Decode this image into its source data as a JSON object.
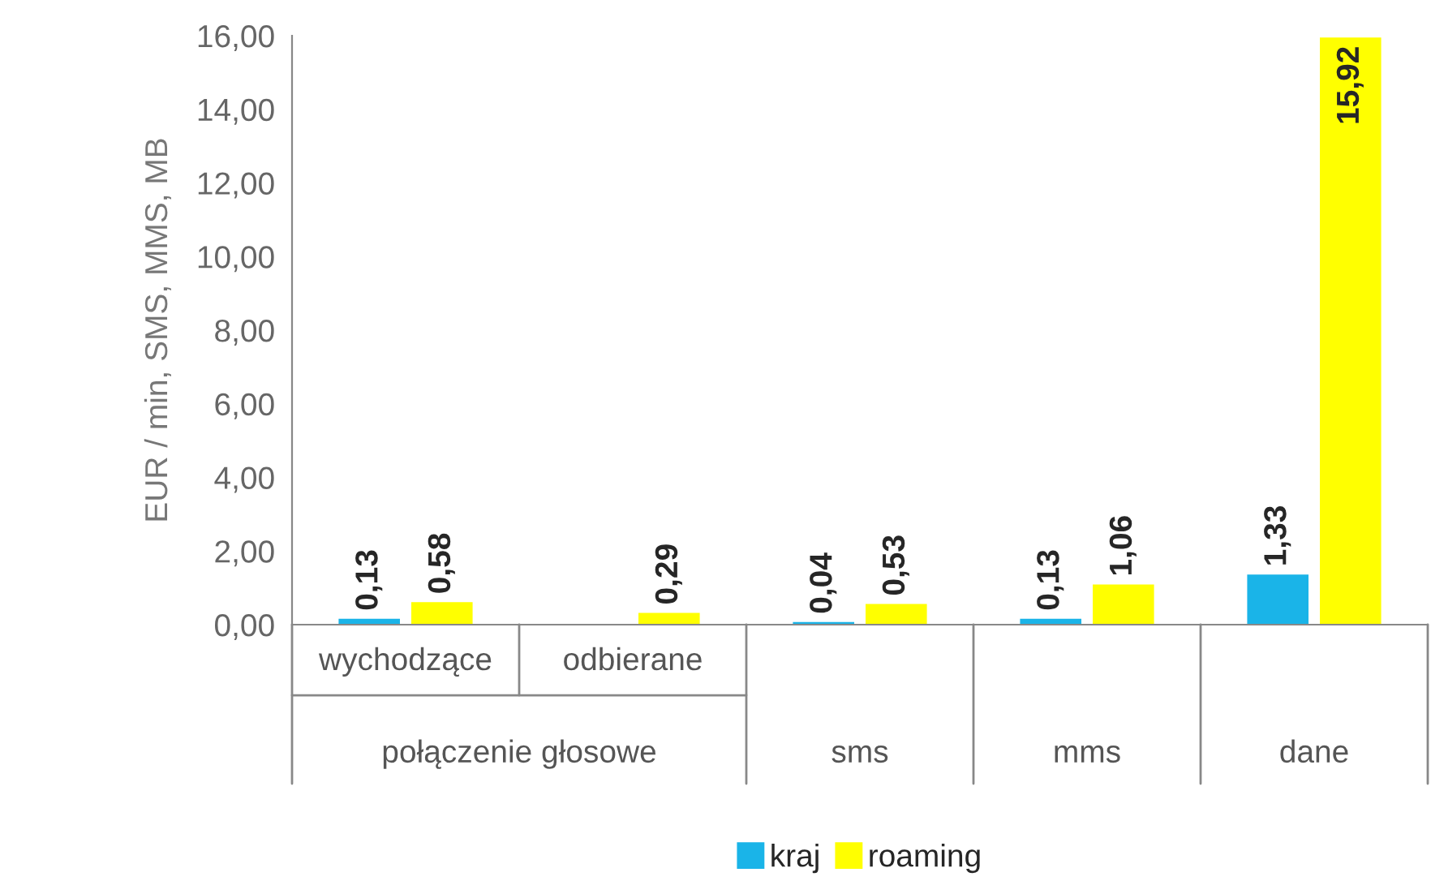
{
  "chart_data": {
    "type": "bar",
    "ylabel": "EUR / min, SMS, MMS, MB",
    "categories": [
      "wychodzące",
      "odbierane",
      "sms",
      "mms",
      "dane"
    ],
    "series": [
      {
        "name": "kraj",
        "color": "#1ab4e8",
        "values": [
          0.13,
          null,
          0.04,
          0.13,
          1.33
        ],
        "value_labels": [
          "0,13",
          null,
          "0,04",
          "0,13",
          "1,33"
        ]
      },
      {
        "name": "roaming",
        "color": "#ffff00",
        "values": [
          0.58,
          0.29,
          0.53,
          1.06,
          15.92
        ],
        "value_labels": [
          "0,58",
          "0,29",
          "0,53",
          "1,06",
          "15,92"
        ]
      }
    ],
    "annotations": [
      "połączenie głosowe"
    ],
    "ylim": [
      0,
      16
    ],
    "yticks": [
      {
        "value": 0,
        "label": "0,00"
      },
      {
        "value": 2,
        "label": "2,00"
      },
      {
        "value": 4,
        "label": "4,00"
      },
      {
        "value": 6,
        "label": "6,00"
      },
      {
        "value": 8,
        "label": "8,00"
      },
      {
        "value": 10,
        "label": "10,00"
      },
      {
        "value": 12,
        "label": "12,00"
      },
      {
        "value": 14,
        "label": "14,00"
      },
      {
        "value": 16,
        "label": "16,00"
      }
    ],
    "grid": false,
    "legend": "bottom"
  }
}
